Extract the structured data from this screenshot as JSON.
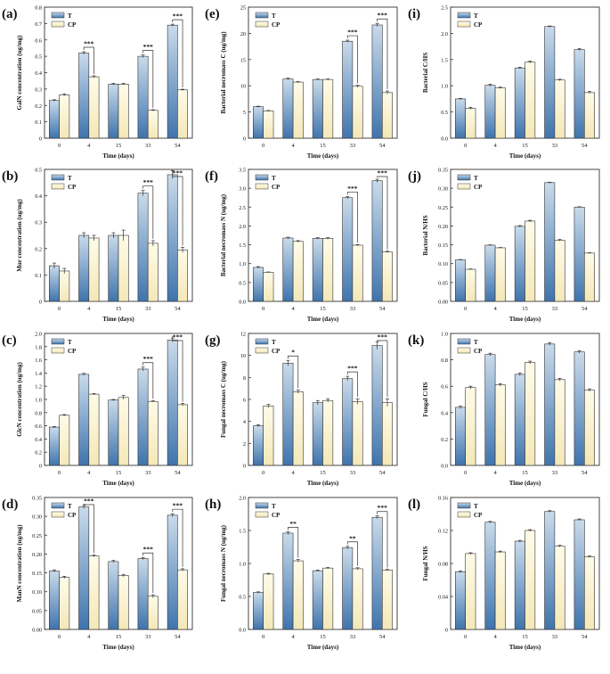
{
  "legend": {
    "t": "T",
    "cp": "CP"
  },
  "xlabel": "Time (days)",
  "colors": {
    "t_top": "#c9dbeb",
    "t_bottom": "#3f74ad",
    "cp_top": "#fffbe8",
    "cp_bottom": "#f6ecc1",
    "stroke": "#333333",
    "text": "#111111"
  },
  "chart_data": [
    {
      "panel_label": "(a)",
      "type": "bar",
      "ylabel": "GalN concentration (ug/mg)",
      "ylim": [
        0,
        0.8
      ],
      "yticks": [
        {
          "v": 0,
          "t": "0"
        },
        {
          "v": 0.1,
          "t": "0.1"
        },
        {
          "v": 0.2,
          "t": "0.2"
        },
        {
          "v": 0.3,
          "t": "0.3"
        },
        {
          "v": 0.4,
          "t": "0.4"
        },
        {
          "v": 0.5,
          "t": "0.5"
        },
        {
          "v": 0.6,
          "t": "0.6"
        },
        {
          "v": 0.7,
          "t": "0.7"
        },
        {
          "v": 0.8,
          "t": "0.8"
        }
      ],
      "categories": [
        "0",
        "4",
        "15",
        "33",
        "54"
      ],
      "series": [
        {
          "name": "T",
          "values": [
            0.23,
            0.52,
            0.33,
            0.5,
            0.69
          ],
          "errors": [
            0.005,
            0.008,
            0.005,
            0.008,
            0.006
          ]
        },
        {
          "name": "CP",
          "values": [
            0.265,
            0.375,
            0.33,
            0.17,
            0.295
          ],
          "errors": [
            0.005,
            0.006,
            0.005,
            0.004,
            0.004
          ]
        }
      ],
      "significance": [
        {
          "category": "4",
          "label": "***"
        },
        {
          "category": "33",
          "label": "***"
        },
        {
          "category": "54",
          "label": "***"
        }
      ]
    },
    {
      "panel_label": "(e)",
      "type": "bar",
      "ylabel": "Bacterial necromass C (ug/mg)",
      "ylim": [
        0,
        25
      ],
      "yticks": [
        {
          "v": 0,
          "t": "0"
        },
        {
          "v": 5,
          "t": "5"
        },
        {
          "v": 10,
          "t": "10"
        },
        {
          "v": 15,
          "t": "15"
        },
        {
          "v": 20,
          "t": "20"
        },
        {
          "v": 25,
          "t": "25"
        }
      ],
      "categories": [
        "0",
        "4",
        "15",
        "33",
        "54"
      ],
      "series": [
        {
          "name": "T",
          "values": [
            6.0,
            11.3,
            11.2,
            18.5,
            21.6
          ],
          "errors": [
            0.1,
            0.15,
            0.1,
            0.2,
            0.3
          ]
        },
        {
          "name": "CP",
          "values": [
            5.2,
            10.7,
            11.2,
            9.9,
            8.7
          ],
          "errors": [
            0.1,
            0.1,
            0.1,
            0.2,
            0.3
          ]
        }
      ],
      "significance": [
        {
          "category": "33",
          "label": "***"
        },
        {
          "category": "54",
          "label": "***"
        }
      ]
    },
    {
      "panel_label": "(i)",
      "type": "bar",
      "ylabel": "Bacterial C/HS",
      "ylim": [
        0,
        2.5
      ],
      "yticks": [
        {
          "v": 0,
          "t": "0.0"
        },
        {
          "v": 0.5,
          "t": "0.5"
        },
        {
          "v": 1.0,
          "t": "1.0"
        },
        {
          "v": 1.5,
          "t": "1.5"
        },
        {
          "v": 2.0,
          "t": "2.0"
        },
        {
          "v": 2.5,
          "t": "2.5"
        }
      ],
      "categories": [
        "0",
        "4",
        "15",
        "33",
        "54"
      ],
      "series": [
        {
          "name": "T",
          "values": [
            0.75,
            1.01,
            1.34,
            2.13,
            1.69
          ],
          "errors": [
            0.01,
            0.02,
            0.015,
            0.01,
            0.02
          ]
        },
        {
          "name": "CP",
          "values": [
            0.57,
            0.96,
            1.45,
            1.11,
            0.87
          ],
          "errors": [
            0.02,
            0.015,
            0.02,
            0.015,
            0.02
          ]
        }
      ],
      "significance": []
    },
    {
      "panel_label": "(b)",
      "type": "bar",
      "ylabel": "Mur concentration (ug/mg)",
      "ylim": [
        0,
        0.5
      ],
      "yticks": [
        {
          "v": 0,
          "t": "0"
        },
        {
          "v": 0.1,
          "t": "0.1"
        },
        {
          "v": 0.2,
          "t": "0.2"
        },
        {
          "v": 0.3,
          "t": "0.3"
        },
        {
          "v": 0.4,
          "t": "0.4"
        },
        {
          "v": 0.5,
          "t": "0.5"
        }
      ],
      "categories": [
        "0",
        "4",
        "15",
        "33",
        "54"
      ],
      "series": [
        {
          "name": "T",
          "values": [
            0.135,
            0.25,
            0.25,
            0.41,
            0.48
          ],
          "errors": [
            0.01,
            0.01,
            0.01,
            0.01,
            0.015
          ]
        },
        {
          "name": "CP",
          "values": [
            0.115,
            0.24,
            0.25,
            0.22,
            0.195
          ],
          "errors": [
            0.01,
            0.01,
            0.02,
            0.01,
            0.01
          ]
        }
      ],
      "significance": [
        {
          "category": "33",
          "label": "***"
        },
        {
          "category": "54",
          "label": "***"
        }
      ]
    },
    {
      "panel_label": "(f)",
      "type": "bar",
      "ylabel": "Bacterial necromass N (ug/mg)",
      "ylim": [
        0,
        3.5
      ],
      "yticks": [
        {
          "v": 0,
          "t": "0.0"
        },
        {
          "v": 0.5,
          "t": "0.5"
        },
        {
          "v": 1.0,
          "t": "1.0"
        },
        {
          "v": 1.5,
          "t": "1.5"
        },
        {
          "v": 2.0,
          "t": "2.0"
        },
        {
          "v": 2.5,
          "t": "2.5"
        },
        {
          "v": 3.0,
          "t": "3.0"
        },
        {
          "v": 3.5,
          "t": "3.5"
        }
      ],
      "categories": [
        "0",
        "4",
        "15",
        "33",
        "54"
      ],
      "series": [
        {
          "name": "T",
          "values": [
            0.9,
            1.68,
            1.67,
            2.75,
            3.2
          ],
          "errors": [
            0.02,
            0.02,
            0.02,
            0.03,
            0.04
          ]
        },
        {
          "name": "CP",
          "values": [
            0.77,
            1.59,
            1.67,
            1.49,
            1.31
          ],
          "errors": [
            0.01,
            0.02,
            0.02,
            0.015,
            0.02
          ]
        }
      ],
      "significance": [
        {
          "category": "33",
          "label": "***"
        },
        {
          "category": "54",
          "label": "***"
        }
      ]
    },
    {
      "panel_label": "(j)",
      "type": "bar",
      "ylabel": "Bacterial N/HS",
      "ylim": [
        0,
        0.35
      ],
      "yticks": [
        {
          "v": 0,
          "t": "0.00"
        },
        {
          "v": 0.05,
          "t": "0.05"
        },
        {
          "v": 0.1,
          "t": "0.10"
        },
        {
          "v": 0.15,
          "t": "0.15"
        },
        {
          "v": 0.2,
          "t": "0.20"
        },
        {
          "v": 0.25,
          "t": "0.25"
        },
        {
          "v": 0.3,
          "t": "0.30"
        },
        {
          "v": 0.35,
          "t": "0.35"
        }
      ],
      "categories": [
        "0",
        "4",
        "15",
        "33",
        "54"
      ],
      "series": [
        {
          "name": "T",
          "values": [
            0.11,
            0.149,
            0.199,
            0.315,
            0.25
          ],
          "errors": [
            0.001,
            0.001,
            0.002,
            0.001,
            0.001
          ]
        },
        {
          "name": "CP",
          "values": [
            0.085,
            0.142,
            0.213,
            0.162,
            0.128
          ],
          "errors": [
            0.001,
            0.001,
            0.002,
            0.002,
            0.001
          ]
        }
      ],
      "significance": []
    },
    {
      "panel_label": "(c)",
      "type": "bar",
      "ylabel": "GlcN concentration (ug/mg)",
      "ylim": [
        0,
        2.0
      ],
      "yticks": [
        {
          "v": 0,
          "t": "0"
        },
        {
          "v": 0.2,
          "t": "0.2"
        },
        {
          "v": 0.4,
          "t": "0.4"
        },
        {
          "v": 0.6,
          "t": "0.6"
        },
        {
          "v": 0.8,
          "t": "0.8"
        },
        {
          "v": 1.0,
          "t": "1.0"
        },
        {
          "v": 1.2,
          "t": "1.2"
        },
        {
          "v": 1.4,
          "t": "1.4"
        },
        {
          "v": 1.6,
          "t": "1.6"
        },
        {
          "v": 1.8,
          "t": "1.8"
        },
        {
          "v": 2.0,
          "t": "2.0"
        }
      ],
      "categories": [
        "0",
        "4",
        "15",
        "33",
        "54"
      ],
      "series": [
        {
          "name": "T",
          "values": [
            0.58,
            1.38,
            0.99,
            1.46,
            1.9
          ],
          "errors": [
            0.01,
            0.015,
            0.01,
            0.03,
            0.03
          ]
        },
        {
          "name": "CP",
          "values": [
            0.76,
            1.08,
            1.03,
            0.97,
            0.92
          ],
          "errors": [
            0.01,
            0.01,
            0.03,
            0.01,
            0.02
          ]
        }
      ],
      "significance": [
        {
          "category": "33",
          "label": "***"
        },
        {
          "category": "54",
          "label": "***"
        }
      ]
    },
    {
      "panel_label": "(g)",
      "type": "bar",
      "ylabel": "Fungal necromass C (ug/mg)",
      "ylim": [
        0,
        12
      ],
      "yticks": [
        {
          "v": 0,
          "t": "0"
        },
        {
          "v": 2,
          "t": "2"
        },
        {
          "v": 4,
          "t": "4"
        },
        {
          "v": 6,
          "t": "6"
        },
        {
          "v": 8,
          "t": "8"
        },
        {
          "v": 10,
          "t": "10"
        },
        {
          "v": 12,
          "t": "12"
        }
      ],
      "categories": [
        "0",
        "4",
        "15",
        "33",
        "54"
      ],
      "series": [
        {
          "name": "T",
          "values": [
            3.6,
            9.3,
            5.7,
            7.9,
            10.9
          ],
          "errors": [
            0.1,
            0.25,
            0.2,
            0.2,
            0.35
          ]
        },
        {
          "name": "CP",
          "values": [
            5.4,
            6.7,
            5.9,
            5.8,
            5.7
          ],
          "errors": [
            0.15,
            0.15,
            0.15,
            0.25,
            0.35
          ]
        }
      ],
      "significance": [
        {
          "category": "4",
          "label": "*"
        },
        {
          "category": "33",
          "label": "***"
        },
        {
          "category": "54",
          "label": "***"
        }
      ]
    },
    {
      "panel_label": "(k)",
      "type": "bar",
      "ylabel": "Fungal C/HS",
      "ylim": [
        0,
        1.0
      ],
      "yticks": [
        {
          "v": 0,
          "t": "0.0"
        },
        {
          "v": 0.2,
          "t": "0.2"
        },
        {
          "v": 0.4,
          "t": "0.4"
        },
        {
          "v": 0.6,
          "t": "0.6"
        },
        {
          "v": 0.8,
          "t": "0.8"
        },
        {
          "v": 1.0,
          "t": "1.0"
        }
      ],
      "categories": [
        "0",
        "4",
        "15",
        "33",
        "54"
      ],
      "series": [
        {
          "name": "T",
          "values": [
            0.44,
            0.84,
            0.69,
            0.92,
            0.86
          ],
          "errors": [
            0.01,
            0.01,
            0.01,
            0.01,
            0.01
          ]
        },
        {
          "name": "CP",
          "values": [
            0.59,
            0.61,
            0.78,
            0.65,
            0.57
          ],
          "errors": [
            0.01,
            0.01,
            0.01,
            0.01,
            0.01
          ]
        }
      ],
      "significance": []
    },
    {
      "panel_label": "(d)",
      "type": "bar",
      "ylabel": "ManN concentration (ug/mg)",
      "ylim": [
        0,
        0.35
      ],
      "yticks": [
        {
          "v": 0,
          "t": "0.00"
        },
        {
          "v": 0.05,
          "t": "0.05"
        },
        {
          "v": 0.1,
          "t": "0.10"
        },
        {
          "v": 0.15,
          "t": "0.15"
        },
        {
          "v": 0.2,
          "t": "0.20"
        },
        {
          "v": 0.25,
          "t": "0.25"
        },
        {
          "v": 0.3,
          "t": "0.30"
        },
        {
          "v": 0.35,
          "t": "0.35"
        }
      ],
      "categories": [
        "0",
        "4",
        "15",
        "33",
        "54"
      ],
      "series": [
        {
          "name": "T",
          "values": [
            0.155,
            0.325,
            0.18,
            0.188,
            0.303
          ],
          "errors": [
            0.003,
            0.004,
            0.003,
            0.003,
            0.004
          ]
        },
        {
          "name": "CP",
          "values": [
            0.138,
            0.195,
            0.143,
            0.088,
            0.158
          ],
          "errors": [
            0.003,
            0.003,
            0.003,
            0.004,
            0.003
          ]
        }
      ],
      "significance": [
        {
          "category": "4",
          "label": "***"
        },
        {
          "category": "33",
          "label": "***"
        },
        {
          "category": "54",
          "label": "***"
        }
      ]
    },
    {
      "panel_label": "(h)",
      "type": "bar",
      "ylabel": "Fungal necromass N (ug/mg)",
      "ylim": [
        0,
        2.0
      ],
      "yticks": [
        {
          "v": 0,
          "t": "0.0"
        },
        {
          "v": 0.5,
          "t": "0.5"
        },
        {
          "v": 1.0,
          "t": "1.0"
        },
        {
          "v": 1.5,
          "t": "1.5"
        },
        {
          "v": 2.0,
          "t": "2.0"
        }
      ],
      "categories": [
        "0",
        "4",
        "15",
        "33",
        "54"
      ],
      "series": [
        {
          "name": "T",
          "values": [
            0.56,
            1.46,
            0.89,
            1.24,
            1.7
          ],
          "errors": [
            0.01,
            0.02,
            0.01,
            0.02,
            0.02
          ]
        },
        {
          "name": "CP",
          "values": [
            0.84,
            1.04,
            0.93,
            0.92,
            0.9
          ],
          "errors": [
            0.01,
            0.02,
            0.01,
            0.015,
            0.01
          ]
        }
      ],
      "significance": [
        {
          "category": "4",
          "label": "**"
        },
        {
          "category": "33",
          "label": "**"
        },
        {
          "category": "54",
          "label": "***"
        }
      ]
    },
    {
      "panel_label": "(l)",
      "type": "bar",
      "ylabel": "Fungal N/HS",
      "ylim": [
        0,
        0.16
      ],
      "yticks": [
        {
          "v": 0,
          "t": "0"
        },
        {
          "v": 0.04,
          "t": "0.04"
        },
        {
          "v": 0.08,
          "t": "0.08"
        },
        {
          "v": 0.12,
          "t": "0.12"
        },
        {
          "v": 0.16,
          "t": "0.16"
        }
      ],
      "categories": [
        "0",
        "4",
        "15",
        "33",
        "54"
      ],
      "series": [
        {
          "name": "T",
          "values": [
            0.07,
            0.13,
            0.107,
            0.143,
            0.133
          ],
          "errors": [
            0.001,
            0.001,
            0.001,
            0.001,
            0.001
          ]
        },
        {
          "name": "CP",
          "values": [
            0.092,
            0.094,
            0.12,
            0.101,
            0.088
          ],
          "errors": [
            0.001,
            0.001,
            0.001,
            0.001,
            0.001
          ]
        }
      ],
      "significance": []
    }
  ]
}
